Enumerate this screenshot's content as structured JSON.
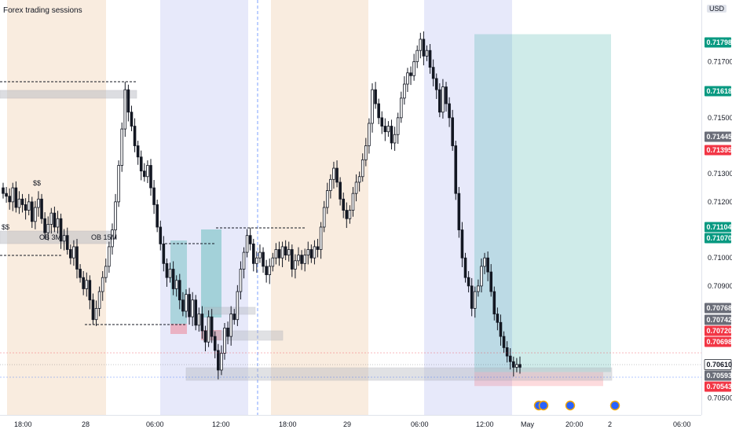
{
  "title": "Forex trading sessions",
  "currency_label": "USD",
  "colors": {
    "up": "#ffffff",
    "down": "#131722",
    "asia_session": "#f7e4d2",
    "london_session": "#e4e7f9",
    "tp_zone": "#26a69a",
    "sl_zone": "#f23645",
    "badge_green": "#089981",
    "badge_red": "#f23645",
    "badge_gray": "#6a6d78"
  },
  "chart_data": {
    "type": "candlestick",
    "title": "Forex trading sessions",
    "ylim": [
      0.7044,
      0.7192
    ],
    "y_ticks": [
      "0.71700",
      "0.71500",
      "0.71300",
      "0.71200",
      "0.71000",
      "0.70900",
      "0.70500"
    ],
    "x_ticks": [
      "18:00",
      "28",
      "06:00",
      "12:00",
      "18:00",
      "29",
      "06:00",
      "12:00",
      "May",
      "20:00",
      "2",
      "06:00"
    ],
    "price_badges": [
      {
        "value": "0.71798",
        "color": "green"
      },
      {
        "value": "0.71618",
        "color": "green"
      },
      {
        "value": "0.71445",
        "color": "gray"
      },
      {
        "value": "0.71395",
        "color": "red"
      },
      {
        "value": "0.71104",
        "color": "green"
      },
      {
        "value": "0.71070",
        "color": "green"
      },
      {
        "value": "0.70768",
        "color": "gray"
      },
      {
        "value": "0.70742",
        "color": "gray"
      },
      {
        "value": "0.70720",
        "color": "red"
      },
      {
        "value": "0.70698",
        "color": "red"
      },
      {
        "value": "0.70610",
        "color": "white"
      },
      {
        "value": "0.70593",
        "color": "gray"
      },
      {
        "value": "0.70543",
        "color": "red"
      }
    ],
    "annotations": [
      "$$",
      "$$",
      "OB 3M",
      "OB 15M"
    ],
    "long_position": {
      "entry": 0.70593,
      "target": 0.71798,
      "stop": 0.70543
    },
    "closes": [
      0.7123,
      0.7122,
      0.712,
      0.7125,
      0.7118,
      0.7121,
      0.7119,
      0.7117,
      0.712,
      0.7113,
      0.7118,
      0.7121,
      0.7114,
      0.7109,
      0.7112,
      0.7116,
      0.7111,
      0.7114,
      0.7106,
      0.7108,
      0.7103,
      0.71,
      0.7104,
      0.7096,
      0.7093,
      0.7089,
      0.7092,
      0.7085,
      0.7078,
      0.7082,
      0.7088,
      0.7093,
      0.7097,
      0.7104,
      0.711,
      0.712,
      0.7133,
      0.7146,
      0.716,
      0.7152,
      0.7147,
      0.714,
      0.7136,
      0.7131,
      0.7129,
      0.7133,
      0.7125,
      0.7119,
      0.7111,
      0.7105,
      0.7098,
      0.7093,
      0.7096,
      0.7089,
      0.7092,
      0.7085,
      0.7081,
      0.7087,
      0.7079,
      0.7085,
      0.7076,
      0.708,
      0.7074,
      0.707,
      0.7079,
      0.7072,
      0.7067,
      0.706,
      0.7066,
      0.7075,
      0.7072,
      0.708,
      0.7078,
      0.7088,
      0.7096,
      0.7102,
      0.7108,
      0.7105,
      0.7098,
      0.71,
      0.7102,
      0.7097,
      0.7094,
      0.7097,
      0.71,
      0.7103,
      0.71,
      0.7104,
      0.7101,
      0.7103,
      0.7096,
      0.7099,
      0.7101,
      0.7098,
      0.7101,
      0.7103,
      0.71,
      0.7104,
      0.7103,
      0.7111,
      0.7118,
      0.7124,
      0.7128,
      0.7132,
      0.7127,
      0.7121,
      0.7117,
      0.7114,
      0.7117,
      0.7123,
      0.7127,
      0.7129,
      0.7135,
      0.714,
      0.7148,
      0.716,
      0.7155,
      0.715,
      0.7147,
      0.7145,
      0.7147,
      0.7141,
      0.7144,
      0.715,
      0.7157,
      0.7162,
      0.7166,
      0.7165,
      0.717,
      0.7174,
      0.7178,
      0.7172,
      0.7174,
      0.7168,
      0.7164,
      0.716,
      0.7152,
      0.7161,
      0.7155,
      0.715,
      0.714,
      0.7123,
      0.711,
      0.71,
      0.7093,
      0.709,
      0.7082,
      0.7088,
      0.709,
      0.7097,
      0.71,
      0.7095,
      0.7088,
      0.708,
      0.7077,
      0.7072,
      0.7068,
      0.7065,
      0.7063,
      0.7061,
      0.7062,
      0.7061
    ]
  }
}
